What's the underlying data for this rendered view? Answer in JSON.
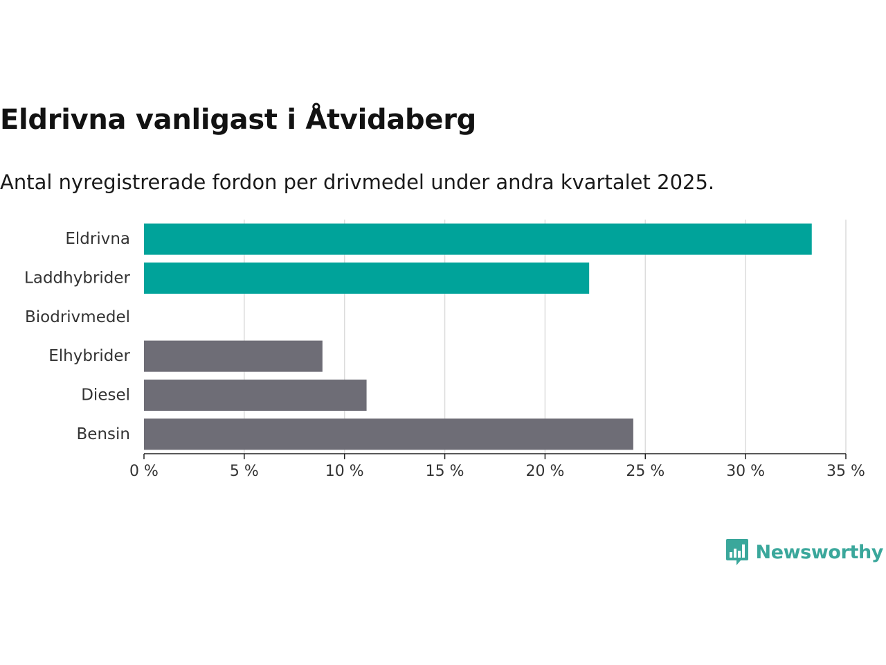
{
  "title": "Eldrivna vanligast i Åtvidaberg",
  "subtitle": "Antal nyregistrerade fordon per drivmedel under andra kvartalet 2025.",
  "chart_data": {
    "type": "bar",
    "orientation": "horizontal",
    "categories": [
      "Eldrivna",
      "Laddhybrider",
      "Biodrivmedel",
      "Elhybrider",
      "Diesel",
      "Bensin"
    ],
    "values": [
      33.3,
      22.2,
      0,
      8.9,
      11.1,
      24.4
    ],
    "colors": [
      "#00a39a",
      "#00a39a",
      "#00a39a",
      "#6e6d76",
      "#6e6d76",
      "#6e6d76"
    ],
    "xlim": [
      0,
      35
    ],
    "xticks": [
      0,
      5,
      10,
      15,
      20,
      25,
      30,
      35
    ],
    "xtick_labels": [
      "0 %",
      "5 %",
      "10 %",
      "15 %",
      "20 %",
      "25 %",
      "30 %",
      "35 %"
    ],
    "grid": "vertical",
    "xlabel": "",
    "ylabel": ""
  },
  "brand": {
    "name": "Newsworthy",
    "icon": "newsworthy-logo-icon",
    "color": "#3aa79b"
  }
}
